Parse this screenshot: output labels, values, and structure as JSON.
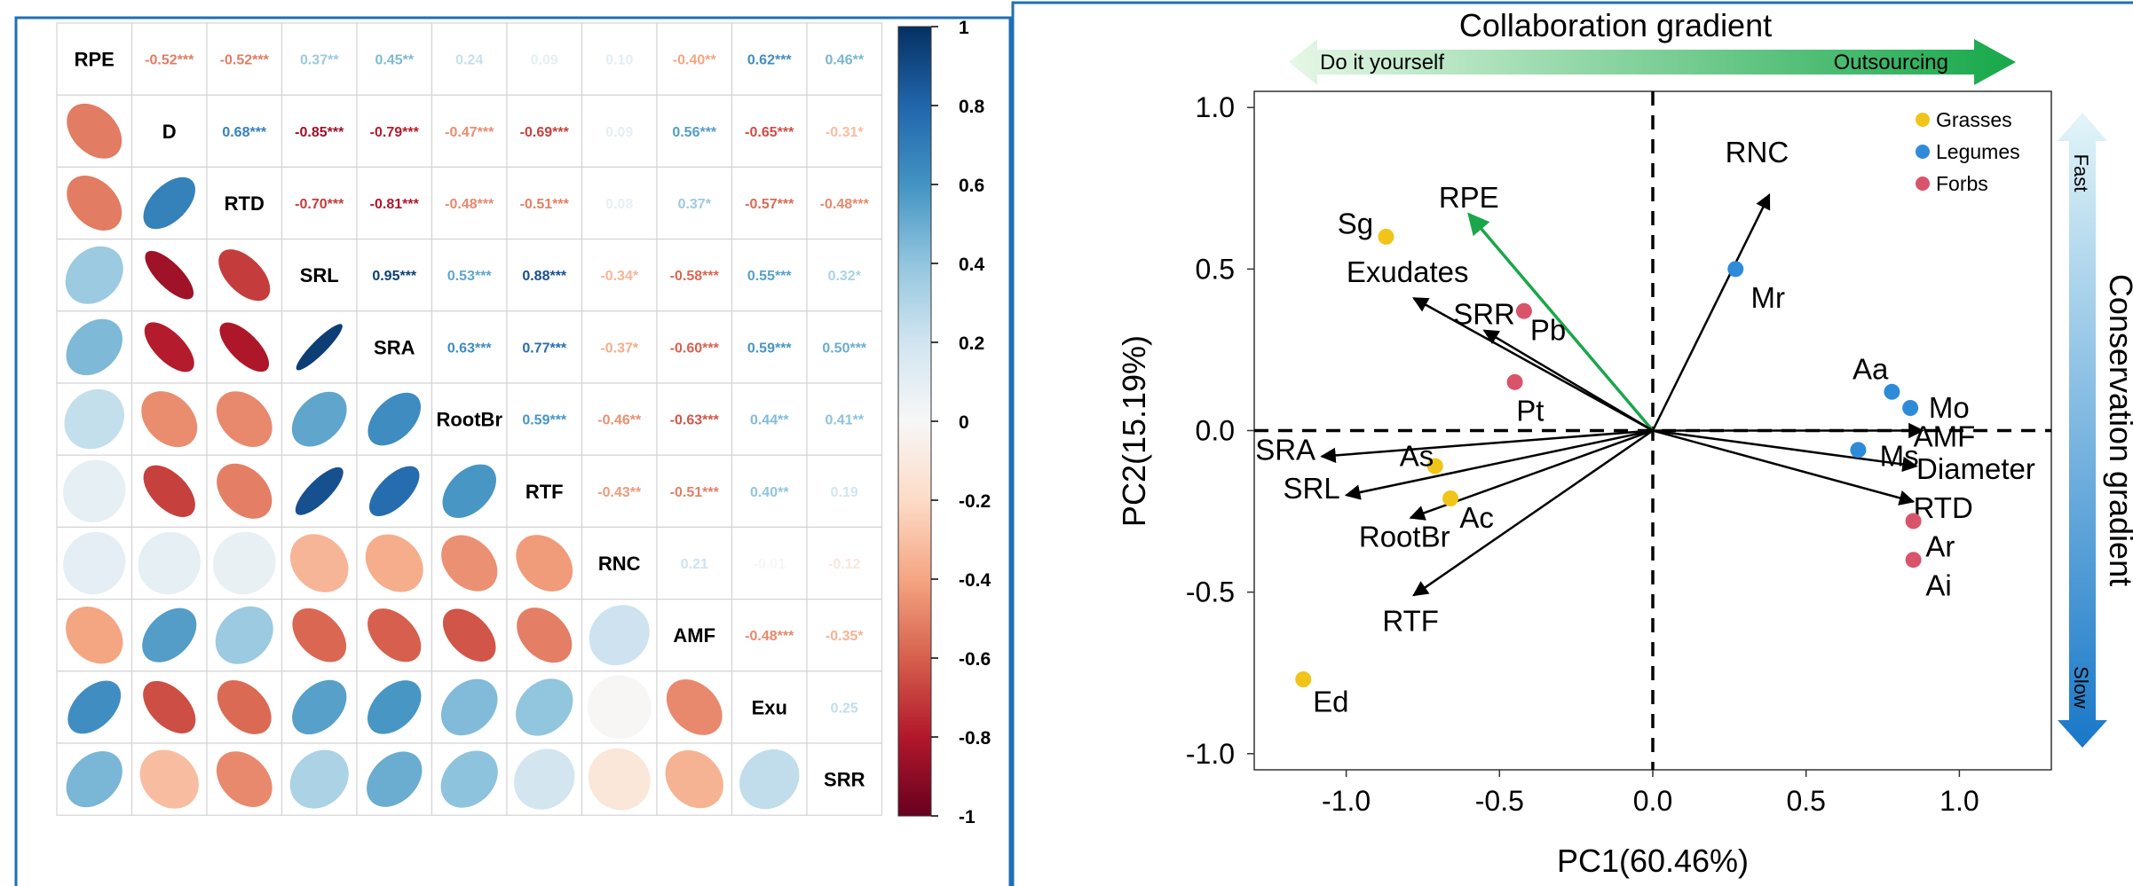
{
  "colors": {
    "frame": "#1f6fb5",
    "negative_max": "#67001f",
    "neutral": "#f7f7f7",
    "positive_max": "#053061",
    "grasses": "#f0c419",
    "legumes": "#2e8bd8",
    "forbs": "#d9546b",
    "rpe_arrow": "#1aa64a",
    "green_arrow_light": "#d8f2d8",
    "green_arrow_dark": "#16a84a",
    "blue_arrow_light": "#dff3f8",
    "blue_arrow_dark": "#1878c8"
  },
  "correlation_plot": {
    "variables": [
      "RPE",
      "D",
      "RTD",
      "SRL",
      "SRA",
      "RootBr",
      "RTF",
      "RNC",
      "AMF",
      "Exu",
      "SRR"
    ],
    "colorbar": {
      "min": -1,
      "max": 1,
      "ticks": [
        "1",
        "0.8",
        "0.6",
        "0.4",
        "0.2",
        "0",
        "-0.2",
        "-0.4",
        "-0.6",
        "-0.8",
        "-1"
      ]
    },
    "matrix": [
      [
        1,
        -0.52,
        -0.52,
        0.37,
        0.45,
        0.24,
        0.09,
        0.1,
        -0.4,
        0.62,
        0.46
      ],
      [
        -0.52,
        1,
        0.68,
        -0.85,
        -0.79,
        -0.47,
        -0.69,
        0.09,
        0.56,
        -0.65,
        -0.31
      ],
      [
        -0.52,
        0.68,
        1,
        -0.7,
        -0.81,
        -0.48,
        -0.51,
        0.08,
        0.37,
        -0.57,
        -0.48
      ],
      [
        0.37,
        -0.85,
        -0.7,
        1,
        0.95,
        0.53,
        0.88,
        -0.34,
        -0.58,
        0.55,
        0.32
      ],
      [
        0.45,
        -0.79,
        -0.81,
        0.95,
        1,
        0.63,
        0.77,
        -0.37,
        -0.6,
        0.59,
        0.5
      ],
      [
        0.24,
        -0.47,
        -0.48,
        0.53,
        0.63,
        1,
        0.59,
        -0.46,
        -0.63,
        0.44,
        0.41
      ],
      [
        0.09,
        -0.69,
        -0.51,
        0.88,
        0.77,
        0.59,
        1,
        -0.43,
        -0.51,
        0.4,
        0.19
      ],
      [
        0.1,
        0.09,
        0.08,
        -0.34,
        -0.37,
        -0.46,
        -0.43,
        1,
        0.21,
        -0.01,
        -0.12
      ],
      [
        -0.4,
        0.56,
        0.37,
        -0.58,
        -0.6,
        -0.63,
        -0.51,
        0.21,
        1,
        -0.48,
        -0.35
      ],
      [
        0.62,
        -0.65,
        -0.57,
        0.55,
        0.59,
        0.44,
        0.4,
        -0.01,
        -0.48,
        1,
        0.25
      ],
      [
        0.46,
        -0.31,
        -0.48,
        0.32,
        0.5,
        0.41,
        0.19,
        -0.12,
        -0.35,
        0.25,
        1
      ]
    ],
    "upper_labels": [
      [
        "",
        "-0.52***",
        "-0.52***",
        "0.37**",
        "0.45**",
        "0.24",
        "0.09",
        "0.10",
        "-0.40**",
        "0.62***",
        "0.46**"
      ],
      [
        "",
        "",
        "0.68***",
        "-0.85***",
        "-0.79***",
        "-0.47***",
        "-0.69***",
        "0.09",
        "0.56***",
        "-0.65***",
        "-0.31*"
      ],
      [
        "",
        "",
        "",
        "-0.70***",
        "-0.81***",
        "-0.48***",
        "-0.51***",
        "0.08",
        "0.37*",
        "-0.57***",
        "-0.48***"
      ],
      [
        "",
        "",
        "",
        "",
        "0.95***",
        "0.53***",
        "0.88***",
        "-0.34*",
        "-0.58***",
        "0.55***",
        "0.32*"
      ],
      [
        "",
        "",
        "",
        "",
        "",
        "0.63***",
        "0.77***",
        "-0.37*",
        "-0.60***",
        "0.59***",
        "0.50***"
      ],
      [
        "",
        "",
        "",
        "",
        "",
        "",
        "0.59***",
        "-0.46**",
        "-0.63***",
        "0.44**",
        "0.41**"
      ],
      [
        "",
        "",
        "",
        "",
        "",
        "",
        "",
        "-0.43**",
        "-0.51***",
        "0.40**",
        "0.19"
      ],
      [
        "",
        "",
        "",
        "",
        "",
        "",
        "",
        "",
        "0.21",
        "-0.01",
        "-0.12"
      ],
      [
        "",
        "",
        "",
        "",
        "",
        "",
        "",
        "",
        "",
        "-0.48***",
        "-0.35*"
      ],
      [
        "",
        "",
        "",
        "",
        "",
        "",
        "",
        "",
        "",
        "",
        "0.25"
      ],
      [
        "",
        "",
        "",
        "",
        "",
        "",
        "",
        "",
        "",
        "",
        ""
      ]
    ]
  },
  "chart_data": {
    "type": "scatter",
    "subtype": "PCA biplot",
    "xlabel": "PC1(60.46%)",
    "ylabel": "PC2(15.19%)",
    "xlim": [
      -1.3,
      1.3
    ],
    "ylim": [
      -1.05,
      1.05
    ],
    "xticks": [
      "-1.0",
      "-0.5",
      "0.0",
      "0.5",
      "1.0"
    ],
    "yticks": [
      "1.0",
      "0.5",
      "0.0",
      "-0.5",
      "-1.0"
    ],
    "xtick_values": [
      -1.0,
      -0.5,
      0.0,
      0.5,
      1.0
    ],
    "ytick_values": [
      1.0,
      0.5,
      0.0,
      -0.5,
      -1.0
    ],
    "legend": {
      "position": "top-right",
      "entries": [
        "Grasses",
        "Legumes",
        "Forbs"
      ]
    },
    "series": [
      {
        "name": "Grasses",
        "color": "#f0c419",
        "points": [
          {
            "label": "Sg",
            "x": -0.87,
            "y": 0.6
          },
          {
            "label": "As",
            "x": -0.71,
            "y": -0.11
          },
          {
            "label": "Ac",
            "x": -0.66,
            "y": -0.21
          },
          {
            "label": "Ed",
            "x": -1.14,
            "y": -0.77
          }
        ]
      },
      {
        "name": "Legumes",
        "color": "#2e8bd8",
        "points": [
          {
            "label": "Mr",
            "x": 0.27,
            "y": 0.5
          },
          {
            "label": "Aa",
            "x": 0.78,
            "y": 0.12
          },
          {
            "label": "Mo",
            "x": 0.84,
            "y": 0.07
          },
          {
            "label": "Ms",
            "x": 0.67,
            "y": -0.06
          }
        ]
      },
      {
        "name": "Forbs",
        "color": "#d9546b",
        "points": [
          {
            "label": "Pb",
            "x": -0.42,
            "y": 0.37
          },
          {
            "label": "Pt",
            "x": -0.45,
            "y": 0.15
          },
          {
            "label": "Ar",
            "x": 0.85,
            "y": -0.28
          },
          {
            "label": "Ai",
            "x": 0.85,
            "y": -0.4
          }
        ]
      }
    ],
    "loadings": [
      {
        "label": "RPE",
        "x": -0.6,
        "y": 0.67,
        "highlight": true
      },
      {
        "label": "RNC",
        "x": 0.38,
        "y": 0.73
      },
      {
        "label": "Exudates",
        "x": -0.78,
        "y": 0.41
      },
      {
        "label": "SRR",
        "x": -0.55,
        "y": 0.31
      },
      {
        "label": "SRA",
        "x": -1.08,
        "y": -0.08
      },
      {
        "label": "SRL",
        "x": -1.0,
        "y": -0.2
      },
      {
        "label": "RootBr",
        "x": -0.79,
        "y": -0.27
      },
      {
        "label": "RTF",
        "x": -0.78,
        "y": -0.51
      },
      {
        "label": "AMF",
        "x": 0.88,
        "y": 0.0
      },
      {
        "label": "Diameter",
        "x": 0.86,
        "y": -0.11
      },
      {
        "label": "RTD",
        "x": 0.85,
        "y": -0.22
      }
    ],
    "annotations": {
      "top_title": "Collaboration gradient",
      "top_left": "Do it yourself",
      "top_right": "Outsourcing",
      "right_title": "Conservation gradient",
      "right_top": "Fast",
      "right_bottom": "Slow"
    }
  }
}
